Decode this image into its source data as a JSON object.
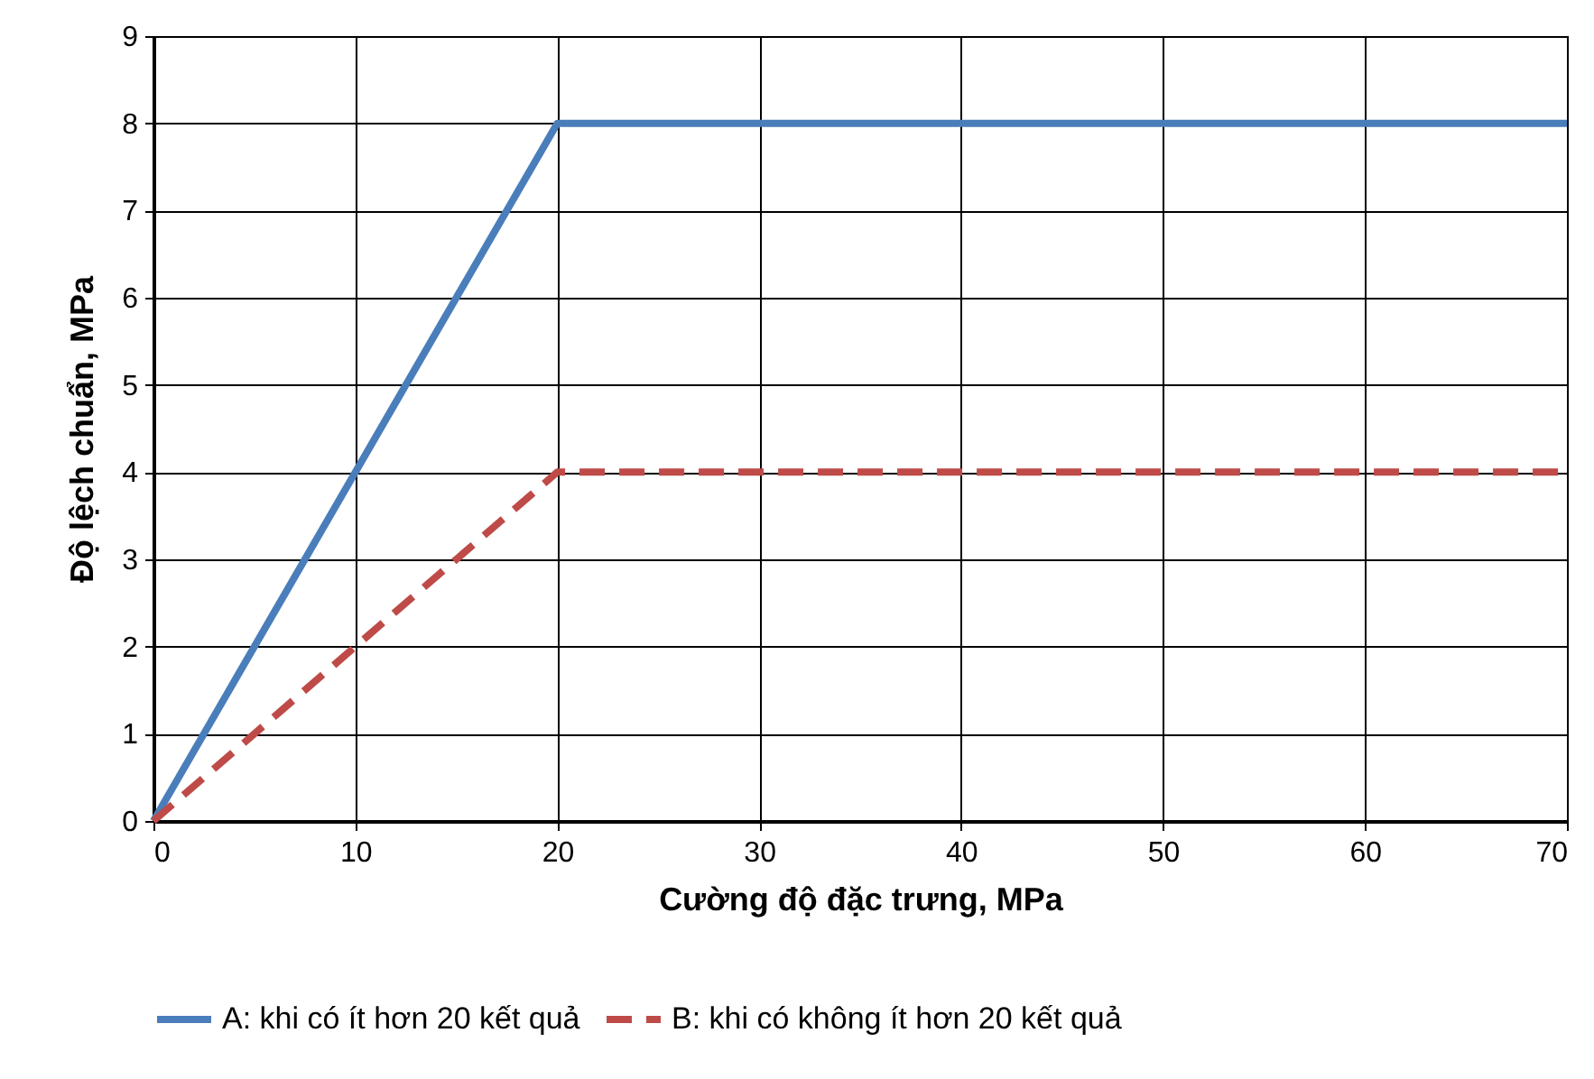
{
  "chart_data": {
    "type": "line",
    "xlabel": "Cường độ đặc trưng, MPa",
    "ylabel": "Độ lệch chuẩn, MPa",
    "xlim": [
      0,
      70
    ],
    "xticks": [
      0,
      10,
      20,
      30,
      40,
      50,
      60,
      70
    ],
    "ylim": [
      0,
      9
    ],
    "yticks": [
      0,
      1,
      2,
      3,
      4,
      5,
      6,
      7,
      8,
      9
    ],
    "grid": true,
    "legend": "bottom",
    "series": [
      {
        "name": "A: khi có ít hơn 20 kết quả",
        "color": "#4a7ebb",
        "line_style": "solid",
        "x": [
          0,
          20,
          70
        ],
        "values": [
          0,
          8,
          8
        ]
      },
      {
        "name": "B: khi có không ít hơn 20 kết quả",
        "color": "#be4b48",
        "line_style": "dashed",
        "x": [
          0,
          20,
          70
        ],
        "values": [
          0,
          4,
          4
        ]
      }
    ]
  }
}
